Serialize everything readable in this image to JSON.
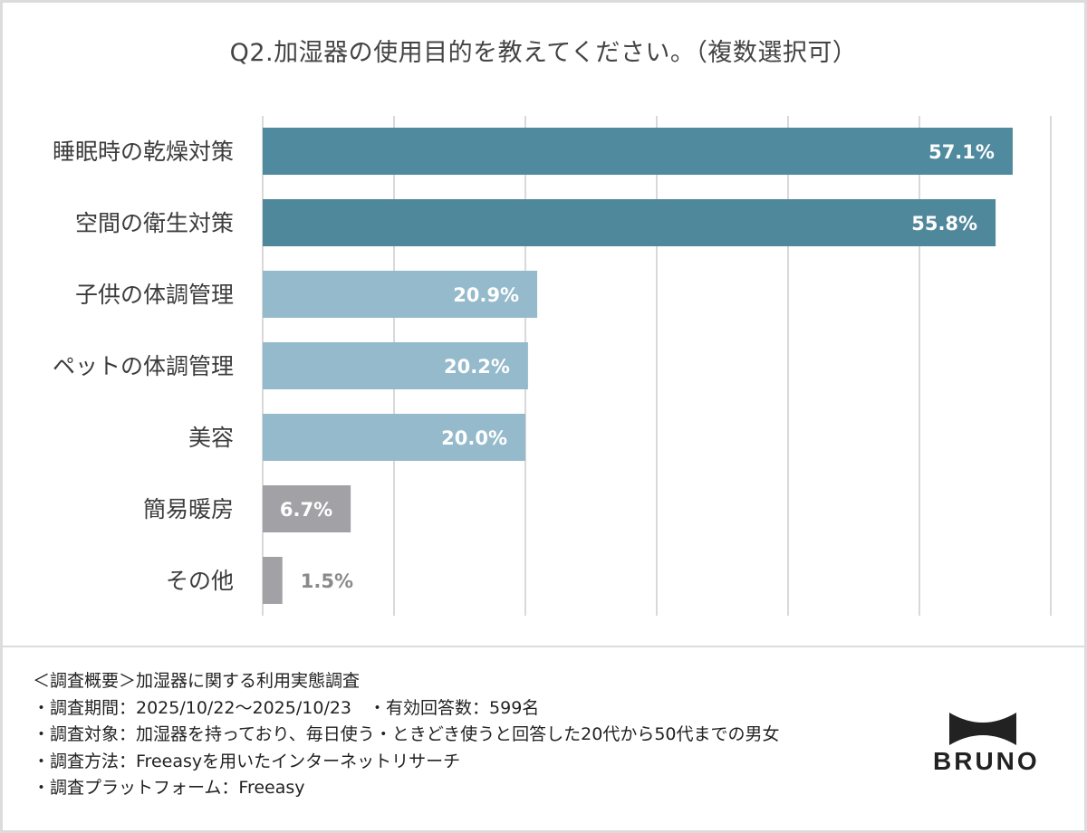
{
  "chart_data": {
    "type": "bar",
    "orientation": "horizontal",
    "title": "Q2.加湿器の使用目的を教えてください。（複数選択可）",
    "categories": [
      "睡眠時の乾燥対策",
      "空間の衛生対策",
      "子供の体調管理",
      "ペットの体調管理",
      "美容",
      "簡易暖房",
      "その他"
    ],
    "values": [
      57.1,
      55.8,
      20.9,
      20.2,
      20.0,
      6.7,
      1.5
    ],
    "data_labels": [
      "57.1%",
      "55.8%",
      "20.9%",
      "20.2%",
      "20.0%",
      "6.7%",
      "1.5%"
    ],
    "unit": "%",
    "xlim": [
      0,
      60
    ],
    "grid": true,
    "bar_colors": [
      "#4f8a9e",
      "#4f879b",
      "#95bacb",
      "#95bacb",
      "#95bacb",
      "#a2a2a6",
      "#a2a2a6"
    ],
    "label_colors": [
      "#ffffff",
      "#ffffff",
      "#ffffff",
      "#ffffff",
      "#ffffff",
      "#ffffff",
      "#8a8a8a"
    ]
  },
  "footer": {
    "lines": [
      "＜調査概要＞加湿器に関する利用実態調査",
      "・調査期間：2025/10/22～2025/10/23　・有効回答数：599名",
      "・調査対象：加湿器を持っており、毎日使う・ときどき使うと回答した20代から50代までの男女",
      "・調査方法：Freeasyを用いたインターネットリサーチ",
      "・調査プラットフォーム：Freeasy"
    ]
  },
  "logo": {
    "text": "BRUNO"
  }
}
